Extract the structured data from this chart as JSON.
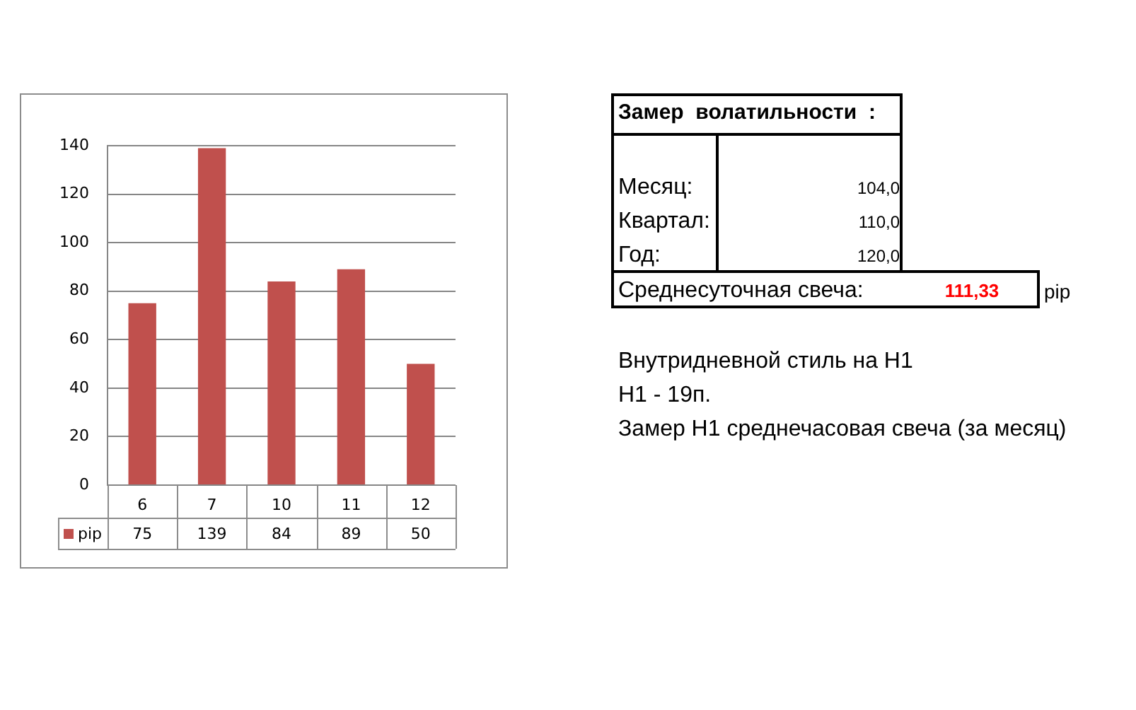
{
  "chart_data": {
    "type": "bar",
    "categories": [
      "6",
      "7",
      "10",
      "11",
      "12"
    ],
    "series": [
      {
        "name": "pip",
        "color": "#c0504d",
        "values": [
          75,
          139,
          84,
          89,
          50
        ]
      }
    ],
    "ylim": [
      0,
      140
    ],
    "yticks": [
      0,
      20,
      40,
      60,
      80,
      100,
      120,
      140
    ],
    "grid": "y",
    "legend": "bottom left",
    "data_labels": true,
    "annotations": [
      "Замер  волатильности  :",
      "Месяц:",
      "104,0",
      "Квартал:",
      "110,0",
      "Год:",
      "120,0",
      "Среднесуточная свеча:",
      "111,33",
      "pip",
      "Внутридневной стиль на H1",
      "H1 - 19п.",
      "Замер H1 среднечасовая свеча (за месяц)"
    ]
  }
}
